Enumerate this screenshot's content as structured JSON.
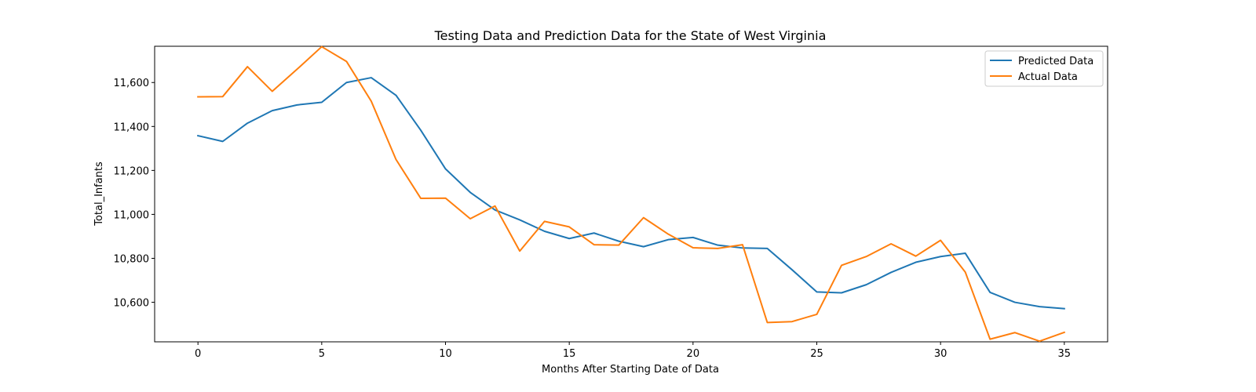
{
  "chart_data": {
    "type": "line",
    "title": "Testing Data and Prediction Data for the State of West Virginia",
    "xlabel": "Months After Starting Date of Data",
    "ylabel": "Total_Infants",
    "xlim": [
      -1.75,
      36.75
    ],
    "ylim": [
      10420,
      11765
    ],
    "xticks": [
      0,
      5,
      10,
      15,
      20,
      25,
      30,
      35
    ],
    "xtick_labels": [
      "0",
      "5",
      "10",
      "15",
      "20",
      "25",
      "30",
      "35"
    ],
    "yticks": [
      10600,
      10800,
      11000,
      11200,
      11400,
      11600
    ],
    "ytick_labels": [
      "10,600",
      "10,800",
      "11,000",
      "11,200",
      "11,400",
      "11,600"
    ],
    "grid": false,
    "legend_position": "top-right",
    "x": [
      0,
      1,
      2,
      3,
      4,
      5,
      6,
      7,
      8,
      9,
      10,
      11,
      12,
      13,
      14,
      15,
      16,
      17,
      18,
      19,
      20,
      21,
      22,
      23,
      24,
      25,
      26,
      27,
      28,
      29,
      30,
      31,
      32,
      33,
      34,
      35
    ],
    "series": [
      {
        "name": "Predicted Data",
        "color": "#1f77b4",
        "values": [
          11358,
          11332,
          11415,
          11472,
          11498,
          11510,
          11600,
          11622,
          11542,
          11383,
          11207,
          11100,
          11020,
          10975,
          10923,
          10890,
          10915,
          10878,
          10853,
          10885,
          10895,
          10860,
          10847,
          10845,
          10748,
          10647,
          10643,
          10680,
          10736,
          10782,
          10808,
          10823,
          10645,
          10600,
          10580,
          10571
        ]
      },
      {
        "name": "Actual Data",
        "color": "#ff7f0e",
        "values": [
          11535,
          11536,
          11672,
          11560,
          11660,
          11763,
          11696,
          11515,
          11250,
          11073,
          11074,
          10980,
          11038,
          10833,
          10968,
          10943,
          10862,
          10860,
          10985,
          10910,
          10848,
          10845,
          10862,
          10508,
          10512,
          10545,
          10768,
          10808,
          10866,
          10810,
          10882,
          10737,
          10432,
          10462,
          10423,
          10463
        ]
      }
    ]
  }
}
